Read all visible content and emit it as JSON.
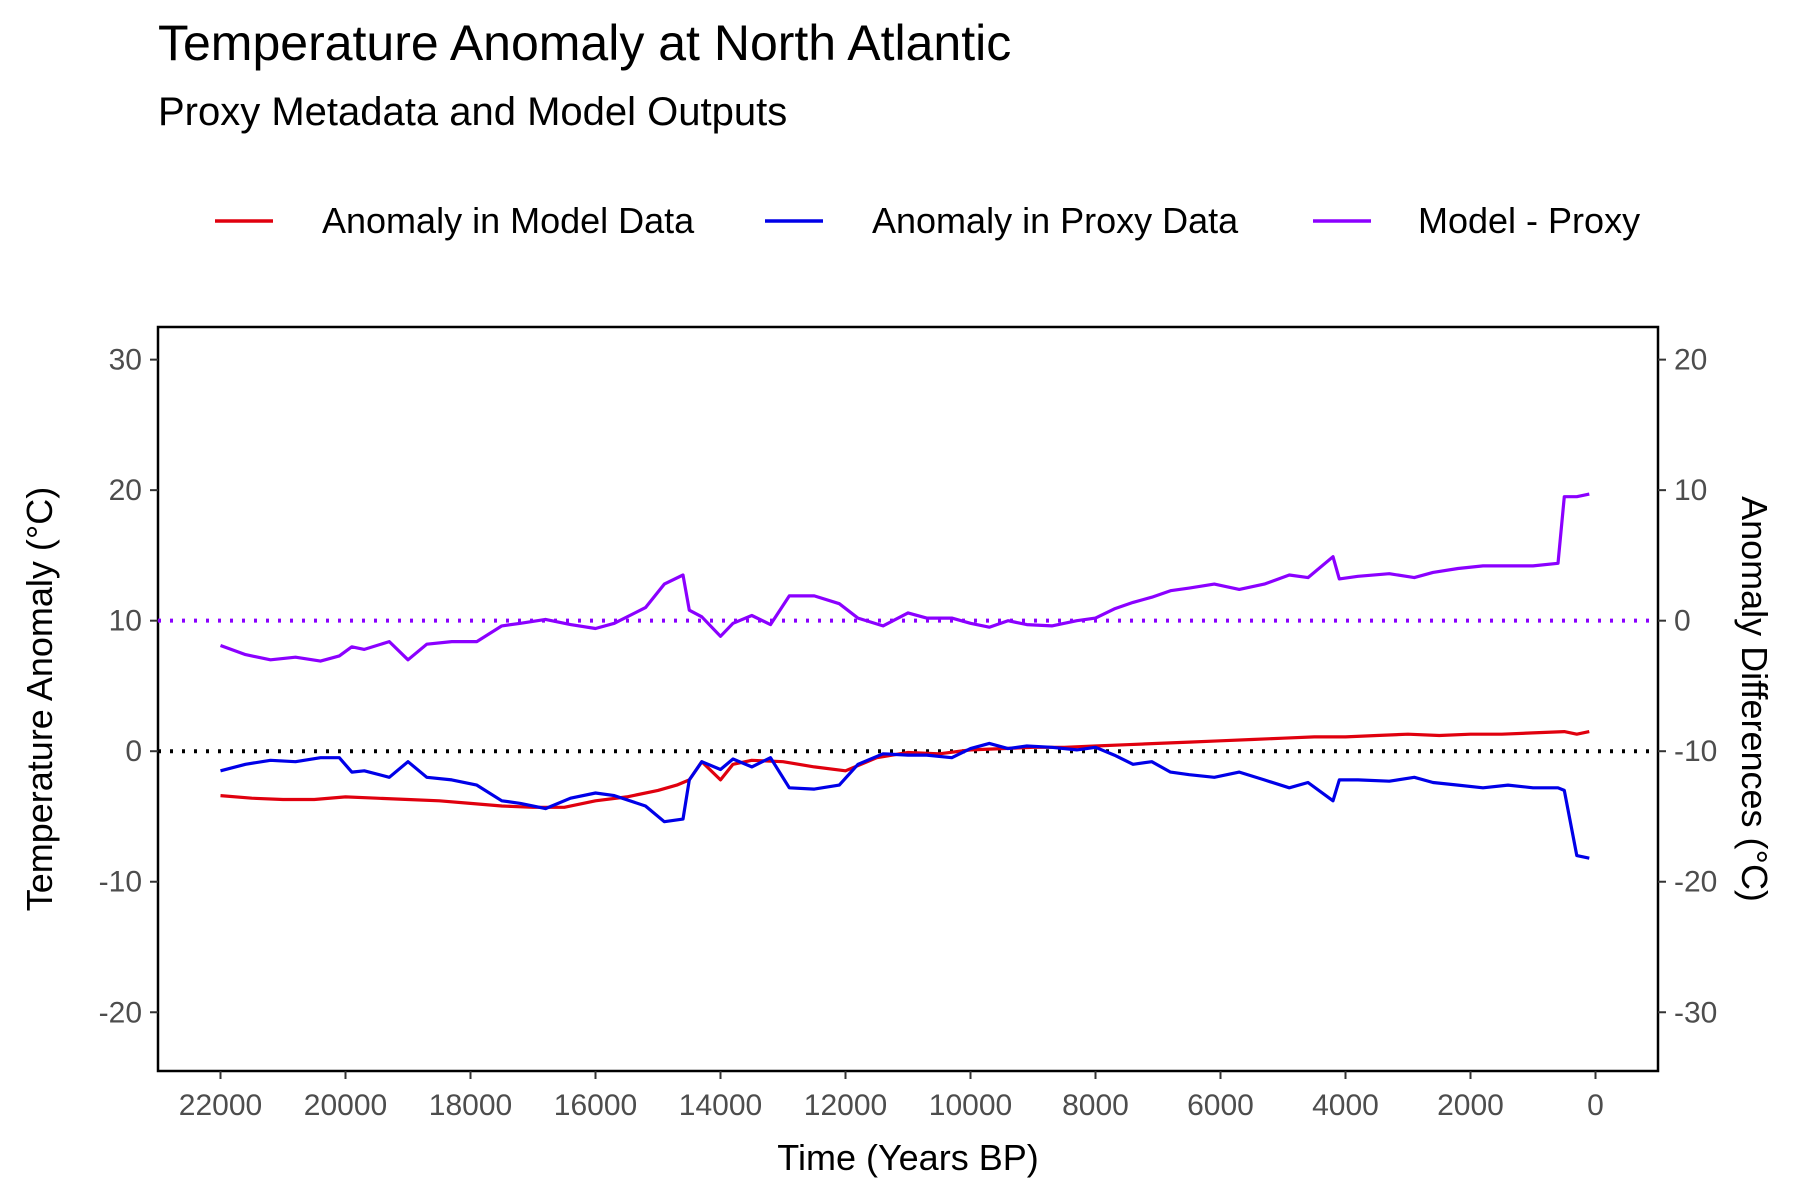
{
  "chart_data": {
    "type": "line",
    "title": "Temperature Anomaly at North Atlantic",
    "subtitle": "Proxy Metadata and Model Outputs",
    "xlabel": "Time (Years BP)",
    "ylabel": "Temperature Anomaly (°C)",
    "y2label": "Anomaly Differences (°C)",
    "xlim": [
      23000,
      -1000
    ],
    "x_reversed": true,
    "ylim": [
      -24.5,
      32.5
    ],
    "y2lim": [
      -34.5,
      22.5
    ],
    "y2_offset": -10,
    "x_ticks": [
      22000,
      20000,
      18000,
      16000,
      14000,
      12000,
      10000,
      8000,
      6000,
      4000,
      2000,
      0
    ],
    "x_tick_labels": [
      "22000",
      "20000",
      "18000",
      "16000",
      "14000",
      "12000",
      "10000",
      "8000",
      "6000",
      "4000",
      "2000",
      "0"
    ],
    "y_ticks": [
      30,
      20,
      10,
      0,
      -10,
      -20
    ],
    "y_tick_labels": [
      "30",
      "20",
      "10",
      "0",
      "-10",
      "-20"
    ],
    "y2_ticks": [
      20,
      10,
      0,
      -10,
      -20,
      -30
    ],
    "y2_tick_labels": [
      "20",
      "10",
      "0",
      "-10",
      "-20",
      "-30"
    ],
    "grid": false,
    "legend_position": "top",
    "reference_lines": [
      {
        "axis": "left",
        "y": 0,
        "style": "dotted",
        "color": "#000000"
      },
      {
        "axis": "right",
        "y": 0,
        "style": "dotted",
        "color": "#8B00FF"
      }
    ],
    "series": [
      {
        "name": "Anomaly in Model Data",
        "axis": "left",
        "color": "#E0000E",
        "x": [
          22000,
          21500,
          21000,
          20500,
          20000,
          19500,
          19000,
          18500,
          18000,
          17500,
          17000,
          16500,
          16000,
          15500,
          15000,
          14700,
          14500,
          14300,
          14000,
          13800,
          13500,
          13000,
          12500,
          12000,
          11500,
          11000,
          10500,
          10000,
          9500,
          9000,
          8500,
          8000,
          7500,
          7000,
          6500,
          6000,
          5500,
          5000,
          4500,
          4000,
          3500,
          3000,
          2500,
          2000,
          1500,
          1000,
          500,
          300,
          100
        ],
        "y": [
          -3.4,
          -3.6,
          -3.7,
          -3.7,
          -3.5,
          -3.6,
          -3.7,
          -3.8,
          -4.0,
          -4.2,
          -4.3,
          -4.3,
          -3.8,
          -3.5,
          -3.0,
          -2.6,
          -2.2,
          -0.8,
          -2.2,
          -1.0,
          -0.7,
          -0.8,
          -1.2,
          -1.5,
          -0.5,
          -0.1,
          -0.2,
          0.1,
          0.2,
          0.3,
          0.3,
          0.4,
          0.5,
          0.6,
          0.7,
          0.8,
          0.9,
          1.0,
          1.1,
          1.1,
          1.2,
          1.3,
          1.2,
          1.3,
          1.3,
          1.4,
          1.5,
          1.3,
          1.5
        ]
      },
      {
        "name": "Anomaly in Proxy Data",
        "axis": "left",
        "color": "#0000E8",
        "x": [
          22000,
          21600,
          21200,
          20800,
          20400,
          20100,
          19900,
          19700,
          19300,
          19000,
          18700,
          18300,
          17900,
          17500,
          17200,
          16800,
          16400,
          16000,
          15700,
          15200,
          14900,
          14600,
          14500,
          14300,
          14000,
          13800,
          13500,
          13200,
          12900,
          12500,
          12100,
          11800,
          11400,
          11000,
          10700,
          10300,
          10000,
          9700,
          9400,
          9100,
          8700,
          8300,
          8000,
          7700,
          7400,
          7100,
          6800,
          6500,
          6100,
          5700,
          5300,
          4900,
          4600,
          4200,
          4100,
          3800,
          3300,
          2900,
          2600,
          2200,
          1800,
          1400,
          1000,
          600,
          500,
          300,
          100
        ],
        "y": [
          -1.5,
          -1.0,
          -0.7,
          -0.8,
          -0.5,
          -0.5,
          -1.6,
          -1.5,
          -2.0,
          -0.8,
          -2.0,
          -2.2,
          -2.6,
          -3.8,
          -4.0,
          -4.4,
          -3.6,
          -3.2,
          -3.4,
          -4.2,
          -5.4,
          -5.2,
          -2.2,
          -0.8,
          -1.4,
          -0.6,
          -1.2,
          -0.5,
          -2.8,
          -2.9,
          -2.6,
          -1.0,
          -0.2,
          -0.3,
          -0.3,
          -0.5,
          0.2,
          0.6,
          0.2,
          0.4,
          0.3,
          0.1,
          0.3,
          -0.3,
          -1.0,
          -0.8,
          -1.6,
          -1.8,
          -2.0,
          -1.6,
          -2.2,
          -2.8,
          -2.4,
          -3.8,
          -2.2,
          -2.2,
          -2.3,
          -2.0,
          -2.4,
          -2.6,
          -2.8,
          -2.6,
          -2.8,
          -2.8,
          -3.0,
          -8.0,
          -8.2
        ]
      },
      {
        "name": "Model - Proxy",
        "axis": "right",
        "color": "#8B00FF",
        "x": [
          22000,
          21600,
          21200,
          20800,
          20400,
          20100,
          19900,
          19700,
          19300,
          19000,
          18700,
          18300,
          17900,
          17500,
          17200,
          16800,
          16400,
          16000,
          15700,
          15200,
          14900,
          14600,
          14500,
          14300,
          14000,
          13800,
          13500,
          13200,
          12900,
          12500,
          12100,
          11800,
          11400,
          11000,
          10700,
          10300,
          10000,
          9700,
          9400,
          9100,
          8700,
          8300,
          8000,
          7700,
          7400,
          7100,
          6800,
          6500,
          6100,
          5700,
          5300,
          4900,
          4600,
          4200,
          4100,
          3800,
          3300,
          2900,
          2600,
          2200,
          1800,
          1400,
          1000,
          600,
          500,
          300,
          100
        ],
        "y": [
          -1.9,
          -2.6,
          -3.0,
          -2.8,
          -3.1,
          -2.7,
          -2.0,
          -2.2,
          -1.6,
          -3.0,
          -1.8,
          -1.6,
          -1.6,
          -0.4,
          -0.2,
          0.1,
          -0.3,
          -0.6,
          -0.2,
          1.0,
          2.8,
          3.5,
          0.8,
          0.3,
          -1.2,
          -0.2,
          0.4,
          -0.3,
          1.9,
          1.9,
          1.3,
          0.2,
          -0.4,
          0.6,
          0.2,
          0.2,
          -0.2,
          -0.5,
          0.0,
          -0.3,
          -0.4,
          0.0,
          0.2,
          0.9,
          1.4,
          1.8,
          2.3,
          2.5,
          2.8,
          2.4,
          2.8,
          3.5,
          3.3,
          4.9,
          3.2,
          3.4,
          3.6,
          3.3,
          3.7,
          4.0,
          4.2,
          4.2,
          4.2,
          4.4,
          9.5,
          9.5,
          9.7
        ]
      }
    ]
  }
}
